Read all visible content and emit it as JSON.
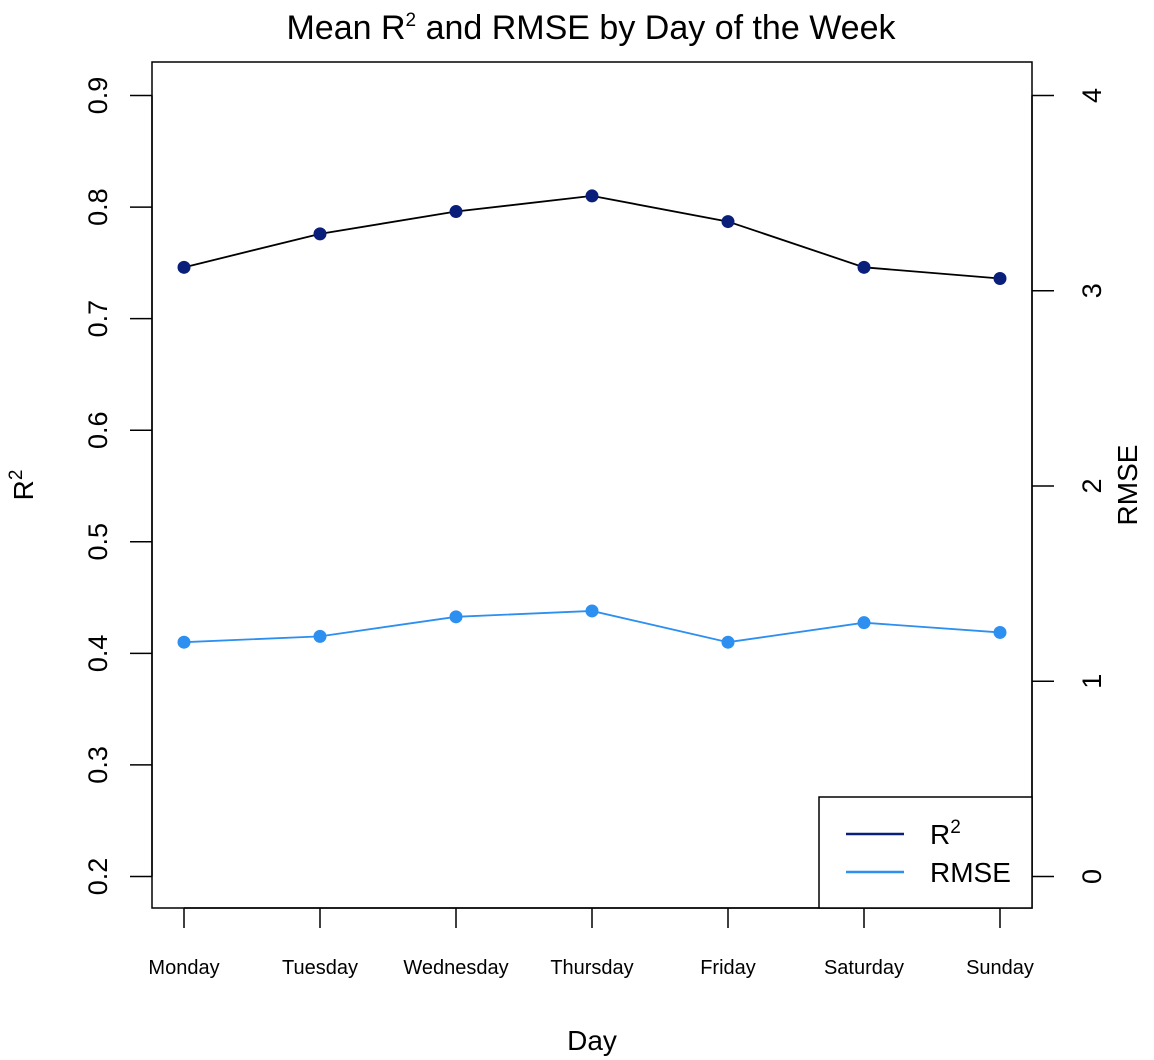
{
  "chart_data": {
    "type": "line",
    "title": "Mean R2 and RMSE by Day of the Week",
    "title_main": "Mean R",
    "title_sup": "2",
    "title_rest": " and RMSE by Day of the Week",
    "xlabel": "Day",
    "ylabel": "R2",
    "ylabel_main": "R",
    "ylabel_sup": "2",
    "y2label": "RMSE",
    "categories": [
      "Monday",
      "Tuesday",
      "Wednesday",
      "Thursday",
      "Friday",
      "Saturday",
      "Sunday"
    ],
    "ylim": [
      0.172,
      0.928
    ],
    "y_ticks": [
      0.2,
      0.3,
      0.4,
      0.5,
      0.6,
      0.7,
      0.8,
      0.9
    ],
    "y_tick_labels": [
      "0.2",
      "0.3",
      "0.4",
      "0.5",
      "0.6",
      "0.7",
      "0.8",
      "0.9"
    ],
    "y2_ticks": [
      0,
      1,
      2,
      3,
      4
    ],
    "y2_tick_labels": [
      "0",
      "1",
      "2",
      "3",
      "4"
    ],
    "grid": false,
    "legend_position": "bottom-right",
    "series": [
      {
        "name": "R2",
        "legend_main": "R",
        "legend_sup": "2",
        "axis": "left",
        "color": "#0a1f7a",
        "line_color": "#000000",
        "values": [
          0.746,
          0.776,
          0.796,
          0.81,
          0.787,
          0.746,
          0.736
        ]
      },
      {
        "name": "RMSE",
        "legend_main": "RMSE",
        "legend_sup": "",
        "axis": "right",
        "color": "#2d8ff0",
        "line_color": "#2d8ff0",
        "values": [
          1.2,
          1.23,
          1.33,
          1.36,
          1.2,
          1.3,
          1.25
        ]
      }
    ]
  }
}
